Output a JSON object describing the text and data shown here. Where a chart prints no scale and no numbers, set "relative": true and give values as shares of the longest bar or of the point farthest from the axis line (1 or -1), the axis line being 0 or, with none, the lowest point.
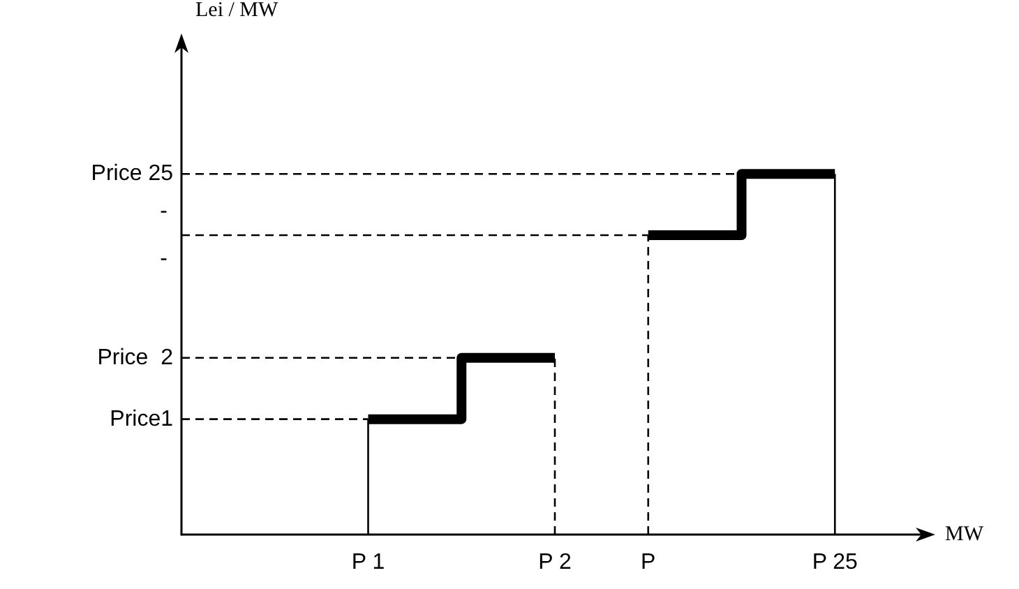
{
  "chart_data": {
    "type": "step",
    "relative": true,
    "xlabel": "MW",
    "ylabel": "Lei / MW",
    "categories": [
      null,
      null,
      "P 1",
      null,
      "P 2",
      "P",
      null,
      "P 25",
      null
    ],
    "ylim": [
      0,
      1.37
    ],
    "annotations": [
      "-",
      "-"
    ],
    "grid": false,
    "marker": "none",
    "series": [
      {
        "color": "#000000",
        "values": [
          null,
          null,
          0.32,
          0.49,
          0.49,
          null,
          null,
          null,
          null
        ]
      },
      {
        "color": "#000000",
        "values": [
          null,
          null,
          null,
          null,
          null,
          0.83,
          1,
          1,
          null
        ]
      }
    ],
    "ref_lines": [
      {
        "axis": "y",
        "value": 0.32,
        "label": "Price1",
        "line_style": "dashed",
        "color": "#000000"
      },
      {
        "axis": "y",
        "value": 0.49,
        "label": "Price  2",
        "line_style": "dashed",
        "color": "#000000"
      },
      {
        "axis": "y",
        "value": 0.83,
        "line_style": "dashed",
        "color": "#000000"
      },
      {
        "axis": "y",
        "value": 1,
        "label": "Price 25",
        "line_style": "dashed",
        "color": "#000000"
      },
      {
        "axis": "x",
        "value": "P 1",
        "line_style": "solid",
        "color": "#000000"
      },
      {
        "axis": "x",
        "value": "P 2",
        "line_style": "dashed",
        "color": "#000000"
      },
      {
        "axis": "x",
        "value": "P",
        "line_style": "dashed",
        "color": "#000000"
      },
      {
        "axis": "x",
        "value": "P 25",
        "line_style": "solid",
        "color": "#000000"
      }
    ]
  }
}
